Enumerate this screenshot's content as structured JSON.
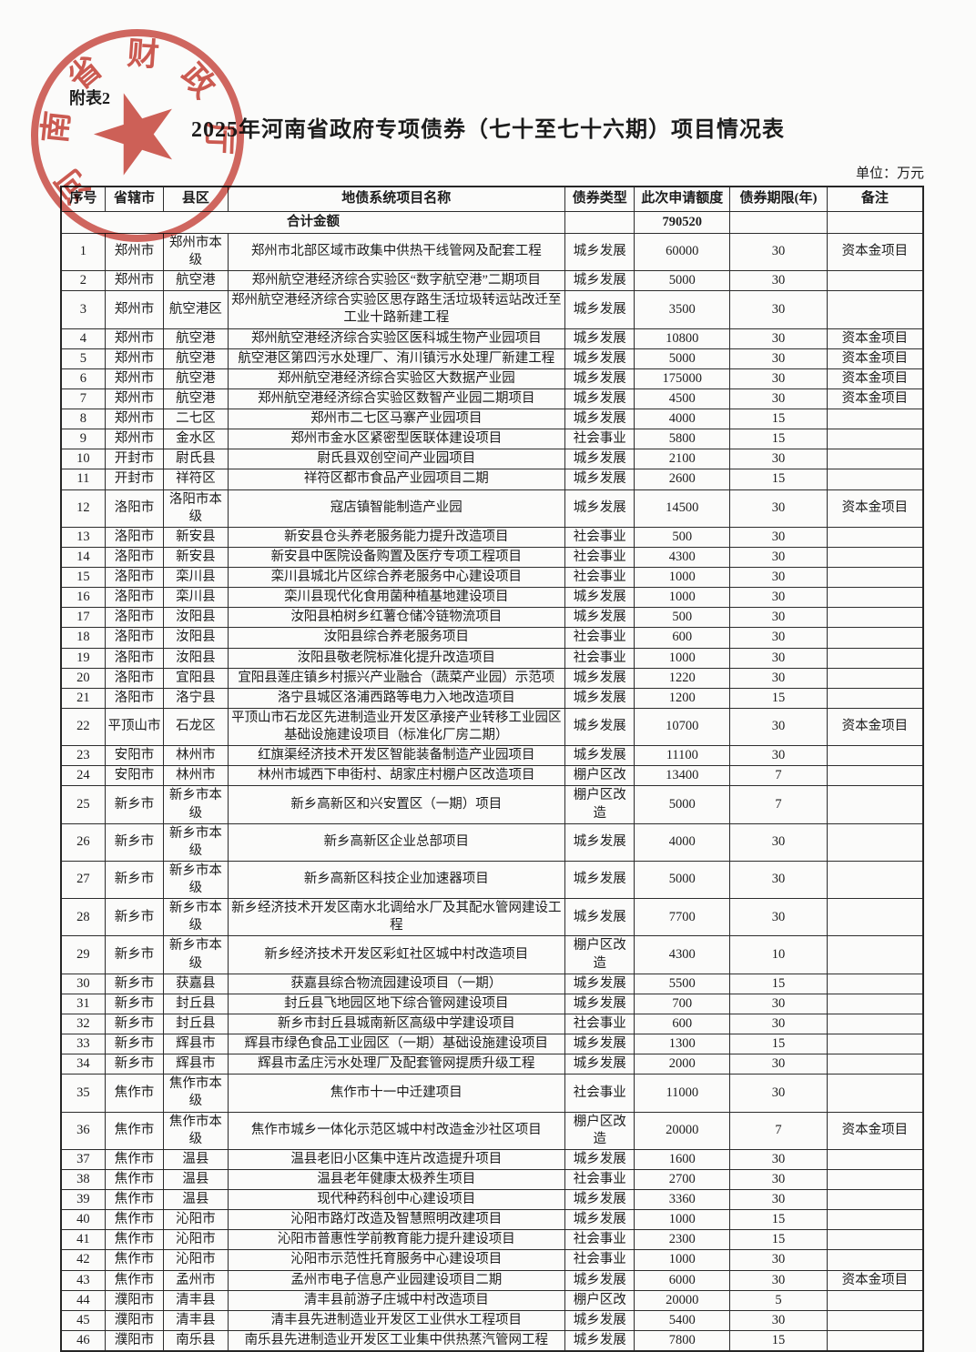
{
  "page": {
    "attachment_label": "附表2",
    "title": "2025年河南省政府专项债券（七十至七十六期）项目情况表",
    "unit_label": "单位：万元"
  },
  "seal": {
    "text": "河南省财政厅",
    "star": "★",
    "color": "#c73e34"
  },
  "table": {
    "headers": {
      "no": "序号",
      "city": "省辖市",
      "county": "县区",
      "project": "地债系统项目名称",
      "type": "债券类型",
      "amount": "此次申请额度",
      "term": "债券期限(年)",
      "note": "备注"
    },
    "total_row": {
      "label": "合计金额",
      "type": "",
      "amount": "790520",
      "term": "",
      "note": ""
    },
    "rows": [
      {
        "no": "1",
        "city": "郑州市",
        "county": "郑州市本级",
        "project": "郑州市北部区域市政集中供热干线管网及配套工程",
        "type": "城乡发展",
        "amount": "60000",
        "term": "30",
        "note": "资本金项目"
      },
      {
        "no": "2",
        "city": "郑州市",
        "county": "航空港",
        "project": "郑州航空港经济综合实验区“数字航空港”二期项目",
        "type": "城乡发展",
        "amount": "5000",
        "term": "30",
        "note": ""
      },
      {
        "no": "3",
        "city": "郑州市",
        "county": "航空港区",
        "project": "郑州航空港经济综合实验区思存路生活垃圾转运站改迁至工业十路新建工程",
        "type": "城乡发展",
        "amount": "3500",
        "term": "30",
        "note": ""
      },
      {
        "no": "4",
        "city": "郑州市",
        "county": "航空港",
        "project": "郑州航空港经济综合实验区医科城生物产业园项目",
        "type": "城乡发展",
        "amount": "10800",
        "term": "30",
        "note": "资本金项目"
      },
      {
        "no": "5",
        "city": "郑州市",
        "county": "航空港",
        "project": "航空港区第四污水处理厂、洧川镇污水处理厂新建工程",
        "type": "城乡发展",
        "amount": "5000",
        "term": "30",
        "note": "资本金项目"
      },
      {
        "no": "6",
        "city": "郑州市",
        "county": "航空港",
        "project": "郑州航空港经济综合实验区大数据产业园",
        "type": "城乡发展",
        "amount": "175000",
        "term": "30",
        "note": "资本金项目"
      },
      {
        "no": "7",
        "city": "郑州市",
        "county": "航空港",
        "project": "郑州航空港经济综合实验区数智产业园二期项目",
        "type": "城乡发展",
        "amount": "4500",
        "term": "30",
        "note": "资本金项目"
      },
      {
        "no": "8",
        "city": "郑州市",
        "county": "二七区",
        "project": "郑州市二七区马寨产业园项目",
        "type": "城乡发展",
        "amount": "4000",
        "term": "15",
        "note": ""
      },
      {
        "no": "9",
        "city": "郑州市",
        "county": "金水区",
        "project": "郑州市金水区紧密型医联体建设项目",
        "type": "社会事业",
        "amount": "5800",
        "term": "15",
        "note": ""
      },
      {
        "no": "10",
        "city": "开封市",
        "county": "尉氏县",
        "project": "尉氏县双创空间产业园项目",
        "type": "城乡发展",
        "amount": "2100",
        "term": "30",
        "note": ""
      },
      {
        "no": "11",
        "city": "开封市",
        "county": "祥符区",
        "project": "祥符区都市食品产业园项目二期",
        "type": "城乡发展",
        "amount": "2600",
        "term": "15",
        "note": ""
      },
      {
        "no": "12",
        "city": "洛阳市",
        "county": "洛阳市本级",
        "project": "寇店镇智能制造产业园",
        "type": "城乡发展",
        "amount": "14500",
        "term": "30",
        "note": "资本金项目"
      },
      {
        "no": "13",
        "city": "洛阳市",
        "county": "新安县",
        "project": "新安县仓头养老服务能力提升改造项目",
        "type": "社会事业",
        "amount": "500",
        "term": "30",
        "note": ""
      },
      {
        "no": "14",
        "city": "洛阳市",
        "county": "新安县",
        "project": "新安县中医院设备购置及医疗专项工程项目",
        "type": "社会事业",
        "amount": "4300",
        "term": "30",
        "note": ""
      },
      {
        "no": "15",
        "city": "洛阳市",
        "county": "栾川县",
        "project": "栾川县城北片区综合养老服务中心建设项目",
        "type": "社会事业",
        "amount": "1000",
        "term": "30",
        "note": ""
      },
      {
        "no": "16",
        "city": "洛阳市",
        "county": "栾川县",
        "project": "栾川县现代化食用菌种植基地建设项目",
        "type": "城乡发展",
        "amount": "1000",
        "term": "30",
        "note": ""
      },
      {
        "no": "17",
        "city": "洛阳市",
        "county": "汝阳县",
        "project": "汝阳县柏树乡红薯仓储冷链物流项目",
        "type": "城乡发展",
        "amount": "500",
        "term": "30",
        "note": ""
      },
      {
        "no": "18",
        "city": "洛阳市",
        "county": "汝阳县",
        "project": "汝阳县综合养老服务项目",
        "type": "社会事业",
        "amount": "600",
        "term": "30",
        "note": ""
      },
      {
        "no": "19",
        "city": "洛阳市",
        "county": "汝阳县",
        "project": "汝阳县敬老院标准化提升改造项目",
        "type": "社会事业",
        "amount": "1000",
        "term": "30",
        "note": ""
      },
      {
        "no": "20",
        "city": "洛阳市",
        "county": "宜阳县",
        "project": "宜阳县莲庄镇乡村振兴产业融合（蔬菜产业园）示范项",
        "type": "城乡发展",
        "amount": "1220",
        "term": "30",
        "note": ""
      },
      {
        "no": "21",
        "city": "洛阳市",
        "county": "洛宁县",
        "project": "洛宁县城区洛浦西路等电力入地改造项目",
        "type": "城乡发展",
        "amount": "1200",
        "term": "15",
        "note": ""
      },
      {
        "no": "22",
        "city": "平顶山市",
        "county": "石龙区",
        "project": "平顶山市石龙区先进制造业开发区承接产业转移工业园区基础设施建设项目（标准化厂房二期）",
        "type": "城乡发展",
        "amount": "10700",
        "term": "30",
        "note": "资本金项目"
      },
      {
        "no": "23",
        "city": "安阳市",
        "county": "林州市",
        "project": "红旗渠经济技术开发区智能装备制造产业园项目",
        "type": "城乡发展",
        "amount": "11100",
        "term": "30",
        "note": ""
      },
      {
        "no": "24",
        "city": "安阳市",
        "county": "林州市",
        "project": "林州市城西下申街村、胡家庄村棚户区改造项目",
        "type": "棚户区改",
        "amount": "13400",
        "term": "7",
        "note": ""
      },
      {
        "no": "25",
        "city": "新乡市",
        "county": "新乡市本级",
        "project": "新乡高新区和兴安置区（一期）项目",
        "type": "棚户区改造",
        "amount": "5000",
        "term": "7",
        "note": ""
      },
      {
        "no": "26",
        "city": "新乡市",
        "county": "新乡市本级",
        "project": "新乡高新区企业总部项目",
        "type": "城乡发展",
        "amount": "4000",
        "term": "30",
        "note": ""
      },
      {
        "no": "27",
        "city": "新乡市",
        "county": "新乡市本级",
        "project": "新乡高新区科技企业加速器项目",
        "type": "城乡发展",
        "amount": "5000",
        "term": "30",
        "note": ""
      },
      {
        "no": "28",
        "city": "新乡市",
        "county": "新乡市本级",
        "project": "新乡经济技术开发区南水北调给水厂及其配水管网建设工程",
        "type": "城乡发展",
        "amount": "7700",
        "term": "30",
        "note": ""
      },
      {
        "no": "29",
        "city": "新乡市",
        "county": "新乡市本级",
        "project": "新乡经济技术开发区彩虹社区城中村改造项目",
        "type": "棚户区改造",
        "amount": "4300",
        "term": "10",
        "note": ""
      },
      {
        "no": "30",
        "city": "新乡市",
        "county": "获嘉县",
        "project": "获嘉县综合物流园建设项目（一期）",
        "type": "城乡发展",
        "amount": "5500",
        "term": "15",
        "note": ""
      },
      {
        "no": "31",
        "city": "新乡市",
        "county": "封丘县",
        "project": "封丘县飞地园区地下综合管网建设项目",
        "type": "城乡发展",
        "amount": "700",
        "term": "30",
        "note": ""
      },
      {
        "no": "32",
        "city": "新乡市",
        "county": "封丘县",
        "project": "新乡市封丘县城南新区高级中学建设项目",
        "type": "社会事业",
        "amount": "600",
        "term": "30",
        "note": ""
      },
      {
        "no": "33",
        "city": "新乡市",
        "county": "辉县市",
        "project": "辉县市绿色食品工业园区（一期）基础设施建设项目",
        "type": "城乡发展",
        "amount": "1300",
        "term": "15",
        "note": ""
      },
      {
        "no": "34",
        "city": "新乡市",
        "county": "辉县市",
        "project": "辉县市孟庄污水处理厂及配套管网提质升级工程",
        "type": "城乡发展",
        "amount": "2000",
        "term": "30",
        "note": ""
      },
      {
        "no": "35",
        "city": "焦作市",
        "county": "焦作市本级",
        "project": "焦作市十一中迁建项目",
        "type": "社会事业",
        "amount": "11000",
        "term": "30",
        "note": ""
      },
      {
        "no": "36",
        "city": "焦作市",
        "county": "焦作市本级",
        "project": "焦作市城乡一体化示范区城中村改造金沙社区项目",
        "type": "棚户区改造",
        "amount": "20000",
        "term": "7",
        "note": "资本金项目"
      },
      {
        "no": "37",
        "city": "焦作市",
        "county": "温县",
        "project": "温县老旧小区集中连片改造提升项目",
        "type": "城乡发展",
        "amount": "1600",
        "term": "30",
        "note": ""
      },
      {
        "no": "38",
        "city": "焦作市",
        "county": "温县",
        "project": "温县老年健康太极养生项目",
        "type": "社会事业",
        "amount": "2700",
        "term": "30",
        "note": ""
      },
      {
        "no": "39",
        "city": "焦作市",
        "county": "温县",
        "project": "现代种药科创中心建设项目",
        "type": "城乡发展",
        "amount": "3360",
        "term": "30",
        "note": ""
      },
      {
        "no": "40",
        "city": "焦作市",
        "county": "沁阳市",
        "project": "沁阳市路灯改造及智慧照明改建项目",
        "type": "城乡发展",
        "amount": "1000",
        "term": "15",
        "note": ""
      },
      {
        "no": "41",
        "city": "焦作市",
        "county": "沁阳市",
        "project": "沁阳市普惠性学前教育能力提升建设项目",
        "type": "社会事业",
        "amount": "2300",
        "term": "15",
        "note": ""
      },
      {
        "no": "42",
        "city": "焦作市",
        "county": "沁阳市",
        "project": "沁阳市示范性托育服务中心建设项目",
        "type": "社会事业",
        "amount": "1000",
        "term": "30",
        "note": ""
      },
      {
        "no": "43",
        "city": "焦作市",
        "county": "孟州市",
        "project": "孟州市电子信息产业园建设项目二期",
        "type": "城乡发展",
        "amount": "6000",
        "term": "30",
        "note": "资本金项目"
      },
      {
        "no": "44",
        "city": "濮阳市",
        "county": "清丰县",
        "project": "清丰县前游子庄城中村改造项目",
        "type": "棚户区改",
        "amount": "20000",
        "term": "5",
        "note": ""
      },
      {
        "no": "45",
        "city": "濮阳市",
        "county": "清丰县",
        "project": "清丰县先进制造业开发区工业供水工程项目",
        "type": "城乡发展",
        "amount": "5400",
        "term": "30",
        "note": ""
      },
      {
        "no": "46",
        "city": "濮阳市",
        "county": "南乐县",
        "project": "南乐县先进制造业开发区工业集中供热蒸汽管网工程",
        "type": "城乡发展",
        "amount": "7800",
        "term": "15",
        "note": ""
      }
    ]
  }
}
